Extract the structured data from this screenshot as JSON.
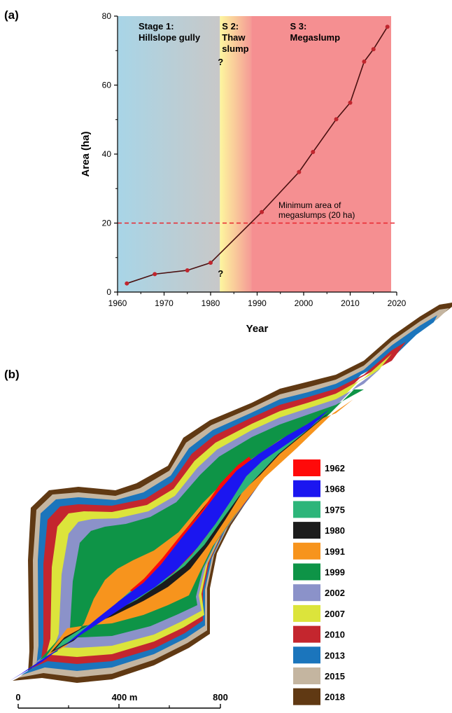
{
  "panel_a_label": "(a)",
  "panel_b_label": "(b)",
  "chart_data": {
    "type": "line",
    "xlabel": "Year",
    "ylabel": "Area (ha)",
    "xlim": [
      1960,
      2020
    ],
    "ylim": [
      0,
      80
    ],
    "xticks": [
      1960,
      1970,
      1980,
      1990,
      2000,
      2010,
      2020
    ],
    "yticks": [
      0,
      20,
      40,
      60,
      80
    ],
    "series": [
      {
        "x": [
          1962,
          1968,
          1975,
          1980,
          1991,
          1999,
          2002,
          2007,
          2010,
          2013,
          2015,
          2018
        ],
        "y": [
          2.5,
          5.2,
          6.3,
          8.5,
          23.2,
          34.8,
          40.6,
          50.1,
          54.9,
          66.8,
          70.4,
          76.9
        ],
        "color": "#c0262e",
        "line_color": "#4a1010"
      }
    ],
    "stages": [
      {
        "label": "Stage 1:",
        "label2": "Hillslope gully",
        "from": 1960,
        "to": 1982,
        "colors": [
          "#a8d5e7",
          "#c8c8c8"
        ]
      },
      {
        "label": "S 2:",
        "label2": "Thaw",
        "label3": "slump",
        "from": 1982,
        "to": 1988.8,
        "colors": [
          "#fdf69e",
          "#f59a96"
        ]
      },
      {
        "label": "S 3:",
        "label2": "Megaslump",
        "from": 1988.8,
        "to": 2018.8,
        "colors": [
          "#f58f91",
          "#f58f91"
        ]
      }
    ],
    "uncertainty_marks": [
      "?",
      "?"
    ],
    "threshold": {
      "y": 20,
      "color": "#e8262e",
      "line1": "Minimum area of",
      "line2": "megaslumps (20 ha)"
    }
  },
  "legend": [
    {
      "year": "1962",
      "color": "#ff0a0a"
    },
    {
      "year": "1968",
      "color": "#1b16f0"
    },
    {
      "year": "1975",
      "color": "#2db57a"
    },
    {
      "year": "1980",
      "color": "#1c1c1c"
    },
    {
      "year": "1991",
      "color": "#f7941d"
    },
    {
      "year": "1999",
      "color": "#0e9447"
    },
    {
      "year": "2002",
      "color": "#8b92c9"
    },
    {
      "year": "2007",
      "color": "#dce43b"
    },
    {
      "year": "2010",
      "color": "#c4262e"
    },
    {
      "year": "2013",
      "color": "#1b75bc"
    },
    {
      "year": "2015",
      "color": "#c4b5a0"
    },
    {
      "year": "2018",
      "color": "#603913"
    }
  ],
  "scale_bar": {
    "labels": [
      "0",
      "400 m",
      "800"
    ]
  }
}
